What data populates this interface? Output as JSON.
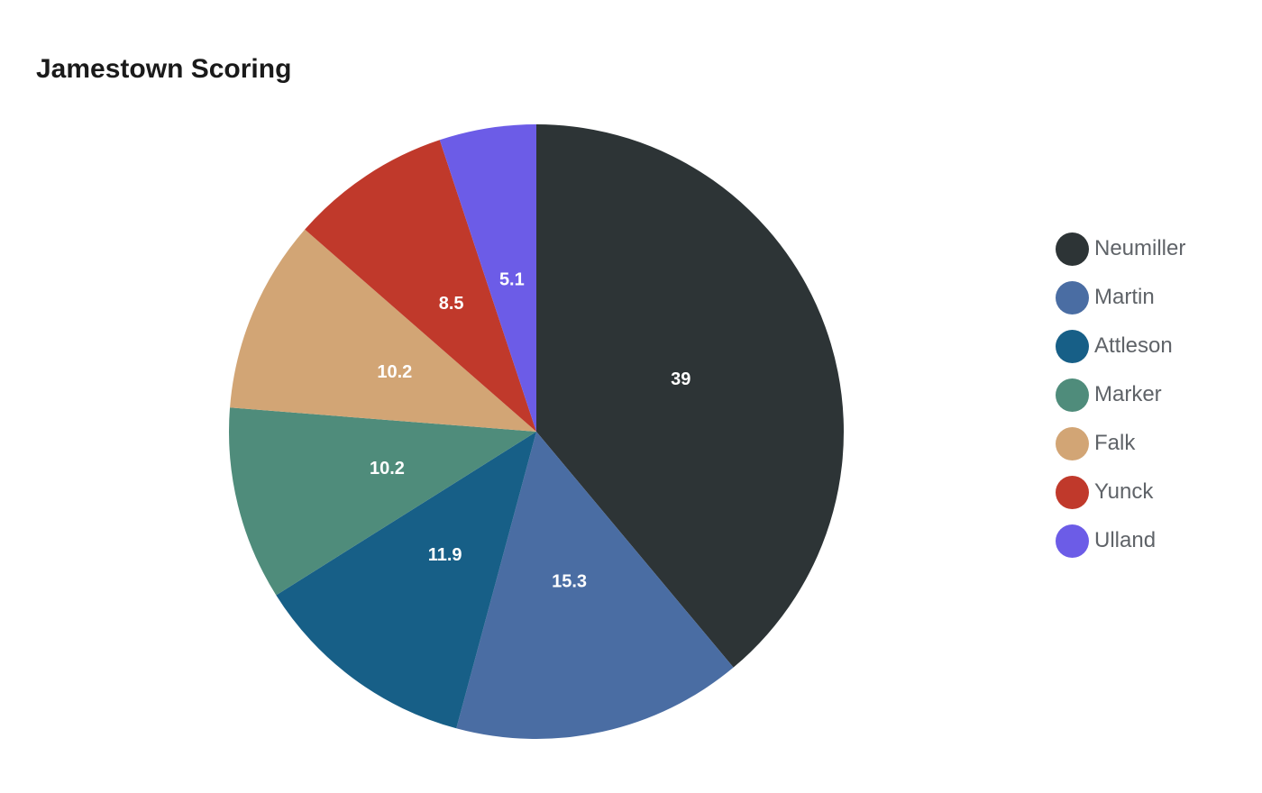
{
  "chart_data": {
    "type": "pie",
    "title": "Jamestown Scoring",
    "categories": [
      "Neumiller",
      "Martin",
      "Attleson",
      "Marker",
      "Falk",
      "Yunck",
      "Ulland"
    ],
    "values": [
      39,
      15.3,
      11.9,
      10.2,
      10.2,
      8.5,
      5.1
    ],
    "colors": [
      "#2d3436",
      "#4a6da3",
      "#175f87",
      "#4f8c7b",
      "#d2a575",
      "#c0392b",
      "#6c5ce7"
    ],
    "data_labels": [
      "39",
      "15.3",
      "11.9",
      "10.2",
      "10.2",
      "8.5",
      "5.1"
    ],
    "legend_position": "right",
    "start_angle": "12 o'clock, clockwise"
  },
  "legend": {
    "items": [
      {
        "label": "Neumiller",
        "color": "#2d3436"
      },
      {
        "label": "Martin",
        "color": "#4a6da3"
      },
      {
        "label": "Attleson",
        "color": "#175f87"
      },
      {
        "label": "Marker",
        "color": "#4f8c7b"
      },
      {
        "label": "Falk",
        "color": "#d2a575"
      },
      {
        "label": "Yunck",
        "color": "#c0392b"
      },
      {
        "label": "Ulland",
        "color": "#6c5ce7"
      }
    ]
  }
}
